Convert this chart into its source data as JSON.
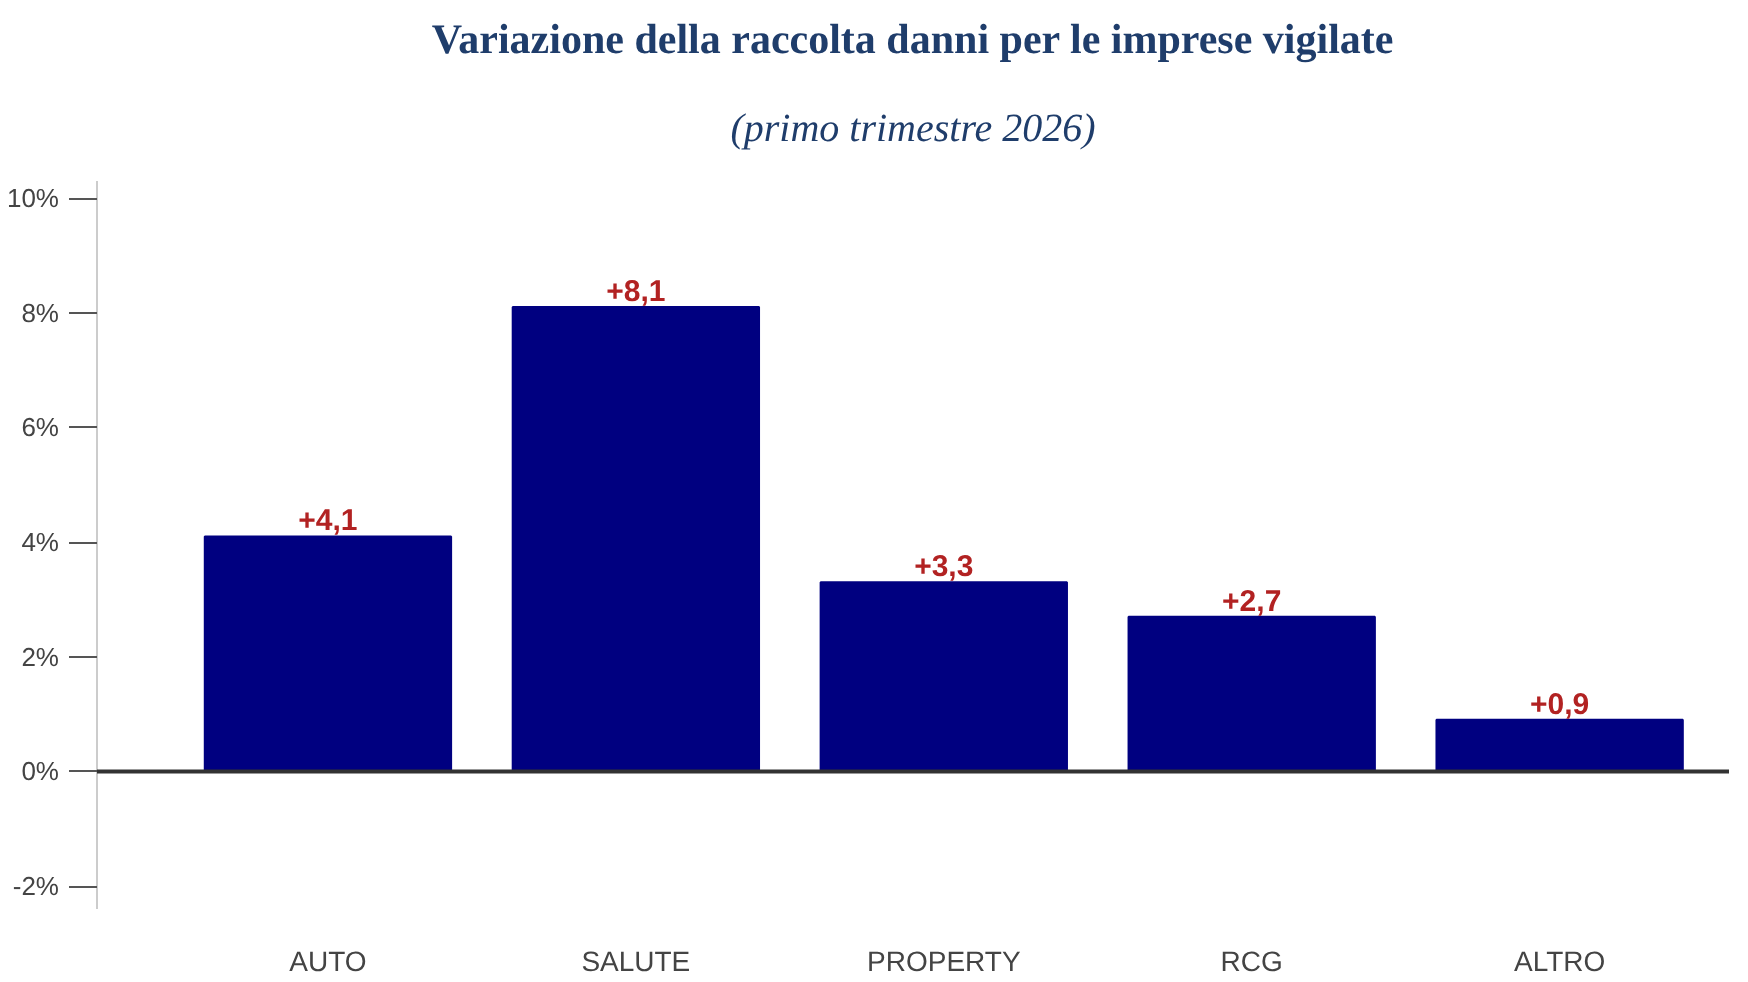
{
  "chart_data": {
    "type": "bar",
    "title": "Variazione della raccolta danni per le imprese vigilate",
    "subtitle": "(primo trimestre 2026)",
    "categories": [
      "AUTO",
      "SALUTE",
      "PROPERTY",
      "RCG",
      "ALTRO"
    ],
    "values": [
      4.1,
      8.1,
      3.3,
      2.7,
      0.9
    ],
    "value_labels": [
      "+4,1",
      "+8,1",
      "+3,3",
      "+2,7",
      "+0,9"
    ],
    "color": "#000080",
    "ylim": [
      -2.4,
      10.3
    ],
    "yticks": [
      {
        "value": -2,
        "label": "-2%"
      },
      {
        "value": 0,
        "label": "0%"
      },
      {
        "value": 2,
        "label": "2%"
      },
      {
        "value": 4,
        "label": "4%"
      },
      {
        "value": 6,
        "label": "6%"
      },
      {
        "value": 8,
        "label": "8%"
      },
      {
        "value": 10,
        "label": "10%"
      }
    ],
    "ref_lines": [
      {
        "axis": "y",
        "value": 0,
        "color": "#333333"
      }
    ],
    "grid": false
  }
}
